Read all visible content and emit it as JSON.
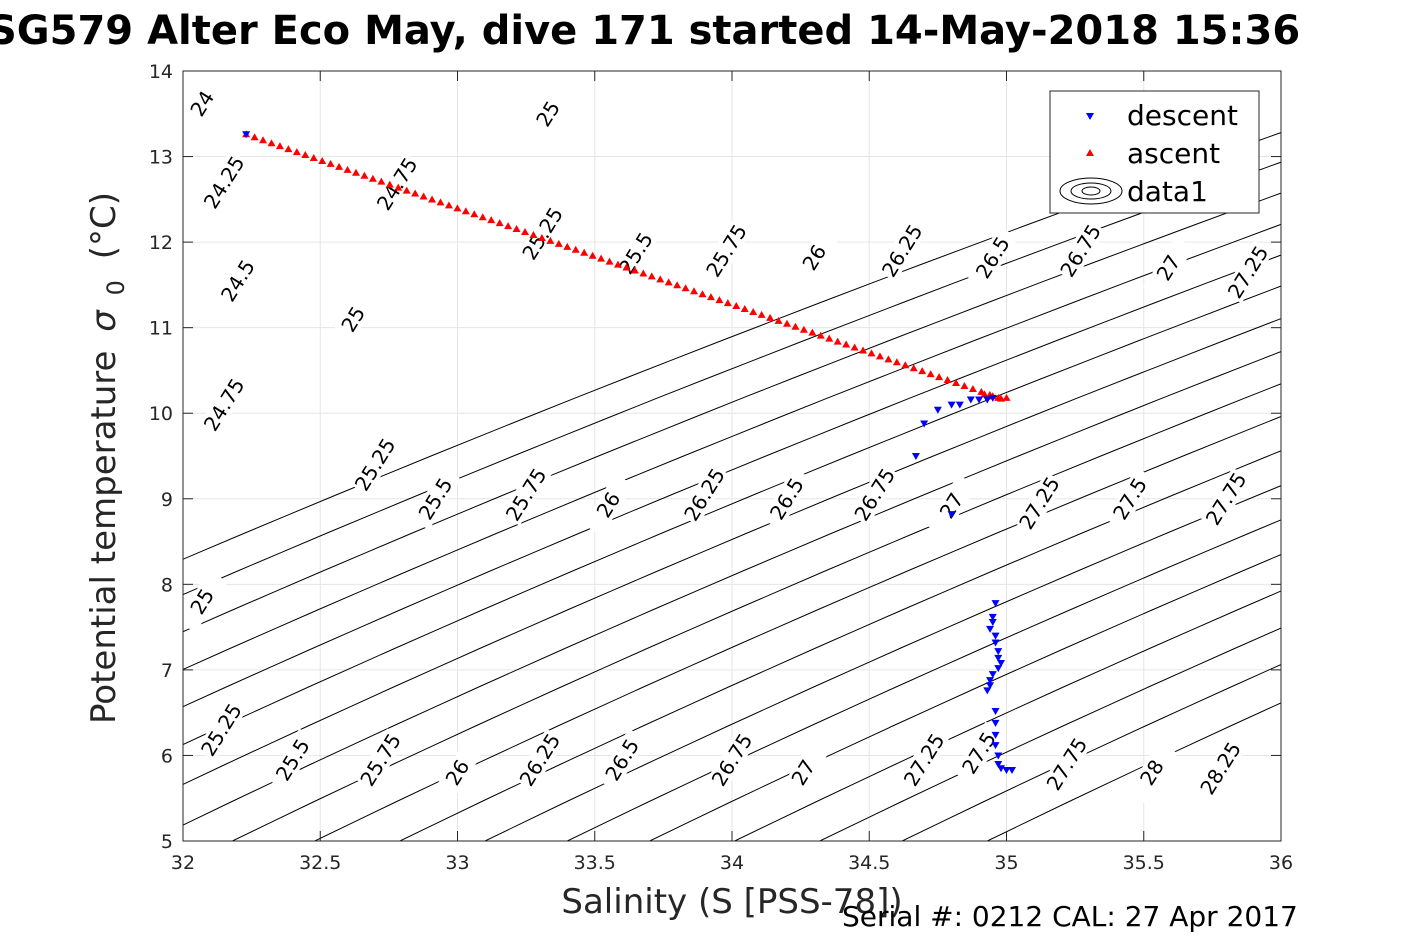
{
  "title": "SG579 Alter Eco May, dive 171 started 14-May-2018 15:36",
  "footer": "Serial #: 0212  CAL: 27 Apr 2017",
  "chart_data": {
    "type": "scatter",
    "xlabel": "Salinity (S [PSS-78])",
    "ylabel_main": "Potential temperature",
    "ylabel_sym": "σ",
    "ylabel_sub": "0",
    "ylabel_unit": "(°C)",
    "xlim": [
      32,
      36
    ],
    "ylim": [
      5,
      14
    ],
    "xticks": [
      "32",
      "32.5",
      "33",
      "33.5",
      "34",
      "34.5",
      "35",
      "35.5",
      "36"
    ],
    "yticks": [
      "5",
      "6",
      "7",
      "8",
      "9",
      "10",
      "11",
      "12",
      "13",
      "14"
    ],
    "grid": true,
    "legend_position": "top-right",
    "legend": [
      "descent",
      "ascent",
      "data1"
    ],
    "colors": {
      "descent": "#0000ff",
      "ascent": "#ff0000",
      "contour": "#000000",
      "grid": "#e6e6e6"
    },
    "contour_levels": [
      {
        "label": "24",
        "s0": 32.08
      },
      {
        "label": "24.25",
        "s0": 31.77
      },
      {
        "label": "24.5",
        "s0": 31.47
      },
      {
        "label": "24.75",
        "s0": 31.16
      },
      {
        "label": "25",
        "s0": 30.85
      },
      {
        "label": "25.25",
        "s0": 30.55
      },
      {
        "label": "25.5",
        "s0": 30.25
      },
      {
        "label": "25.75",
        "s0": 29.94
      },
      {
        "label": "26",
        "s0": 29.63
      },
      {
        "label": "26.25",
        "s0": 29.33
      },
      {
        "label": "26.5",
        "s0": 29.03
      },
      {
        "label": "26.75",
        "s0": 28.72
      },
      {
        "label": "27",
        "s0": 28.41
      },
      {
        "label": "27.25",
        "s0": 28.11
      },
      {
        "label": "27.5",
        "s0": 27.81
      },
      {
        "label": "27.75",
        "s0": 27.5
      },
      {
        "label": "28",
        "s0": 27.19
      },
      {
        "label": "28.25",
        "s0": 26.89
      }
    ],
    "contour_slope": 0.5,
    "contour_curvature": 0.014,
    "contour_labels": [
      {
        "text": "24",
        "x": 32.07,
        "y": 13.62
      },
      {
        "text": "24.25",
        "x": 32.15,
        "y": 12.7
      },
      {
        "text": "24.5",
        "x": 32.2,
        "y": 11.55
      },
      {
        "text": "24.75",
        "x": 32.15,
        "y": 10.1
      },
      {
        "text": "25",
        "x": 32.07,
        "y": 7.8
      },
      {
        "text": "25.25",
        "x": 32.14,
        "y": 6.3
      },
      {
        "text": "25.5",
        "x": 32.4,
        "y": 5.95
      },
      {
        "text": "25.75",
        "x": 32.72,
        "y": 5.95
      },
      {
        "text": "26",
        "x": 33.0,
        "y": 5.8
      },
      {
        "text": "26.25",
        "x": 33.3,
        "y": 5.95
      },
      {
        "text": "26.5",
        "x": 33.6,
        "y": 5.95
      },
      {
        "text": "26.75",
        "x": 34.0,
        "y": 5.95
      },
      {
        "text": "27",
        "x": 34.26,
        "y": 5.8
      },
      {
        "text": "27.25",
        "x": 34.7,
        "y": 5.95
      },
      {
        "text": "27.5",
        "x": 34.9,
        "y": 6.03
      },
      {
        "text": "27.75",
        "x": 35.22,
        "y": 5.9
      },
      {
        "text": "28",
        "x": 35.53,
        "y": 5.8
      },
      {
        "text": "28.25",
        "x": 35.78,
        "y": 5.85
      },
      {
        "text": "25",
        "x": 32.62,
        "y": 11.1
      },
      {
        "text": "25.25",
        "x": 32.7,
        "y": 9.4
      },
      {
        "text": "25.5",
        "x": 32.92,
        "y": 9.0
      },
      {
        "text": "25.75",
        "x": 33.25,
        "y": 9.05
      },
      {
        "text": "26",
        "x": 33.55,
        "y": 8.93
      },
      {
        "text": "26.25",
        "x": 33.9,
        "y": 9.05
      },
      {
        "text": "26.5",
        "x": 34.2,
        "y": 9.0
      },
      {
        "text": "26.75",
        "x": 34.52,
        "y": 9.05
      },
      {
        "text": "27",
        "x": 34.8,
        "y": 8.92
      },
      {
        "text": "27.25",
        "x": 35.12,
        "y": 8.95
      },
      {
        "text": "27.5",
        "x": 35.45,
        "y": 9.0
      },
      {
        "text": "27.75",
        "x": 35.8,
        "y": 9.0
      },
      {
        "text": "25",
        "x": 33.33,
        "y": 13.5
      },
      {
        "text": "24.75",
        "x": 32.78,
        "y": 12.68
      },
      {
        "text": "25.25",
        "x": 33.31,
        "y": 12.1
      },
      {
        "text": "25.5",
        "x": 33.65,
        "y": 11.87
      },
      {
        "text": "25.75",
        "x": 33.98,
        "y": 11.9
      },
      {
        "text": "26",
        "x": 34.3,
        "y": 11.82
      },
      {
        "text": "26.25",
        "x": 34.62,
        "y": 11.9
      },
      {
        "text": "26.5",
        "x": 34.95,
        "y": 11.82
      },
      {
        "text": "26.75",
        "x": 35.27,
        "y": 11.9
      },
      {
        "text": "27",
        "x": 35.59,
        "y": 11.7
      },
      {
        "text": "27.25",
        "x": 35.88,
        "y": 11.65
      }
    ],
    "series": [
      {
        "name": "descent",
        "marker": "triangle-down",
        "points": [
          [
            32.23,
            13.26
          ],
          [
            34.67,
            9.5
          ],
          [
            34.7,
            9.88
          ],
          [
            34.75,
            10.04
          ],
          [
            34.8,
            10.1
          ],
          [
            34.83,
            10.1
          ],
          [
            34.87,
            10.16
          ],
          [
            34.9,
            10.16
          ],
          [
            34.93,
            10.16
          ],
          [
            34.95,
            10.18
          ],
          [
            34.8,
            8.82
          ],
          [
            34.96,
            7.78
          ],
          [
            34.95,
            7.62
          ],
          [
            34.95,
            7.56
          ],
          [
            34.94,
            7.48
          ],
          [
            34.96,
            7.4
          ],
          [
            34.96,
            7.32
          ],
          [
            34.97,
            7.22
          ],
          [
            34.97,
            7.14
          ],
          [
            34.98,
            7.08
          ],
          [
            34.97,
            7.02
          ],
          [
            34.95,
            6.95
          ],
          [
            34.94,
            6.88
          ],
          [
            34.94,
            6.82
          ],
          [
            34.93,
            6.76
          ],
          [
            34.96,
            6.52
          ],
          [
            34.96,
            6.38
          ],
          [
            34.96,
            6.24
          ],
          [
            34.96,
            6.12
          ],
          [
            34.97,
            6.0
          ],
          [
            34.97,
            5.9
          ],
          [
            34.98,
            5.85
          ],
          [
            35.0,
            5.83
          ],
          [
            35.02,
            5.83
          ]
        ]
      },
      {
        "name": "ascent",
        "marker": "triangle-up",
        "start": [
          32.23,
          13.26
        ],
        "end": [
          34.97,
          10.18
        ],
        "count": 90
      },
      {
        "name": "data1",
        "marker": "contour"
      }
    ]
  }
}
